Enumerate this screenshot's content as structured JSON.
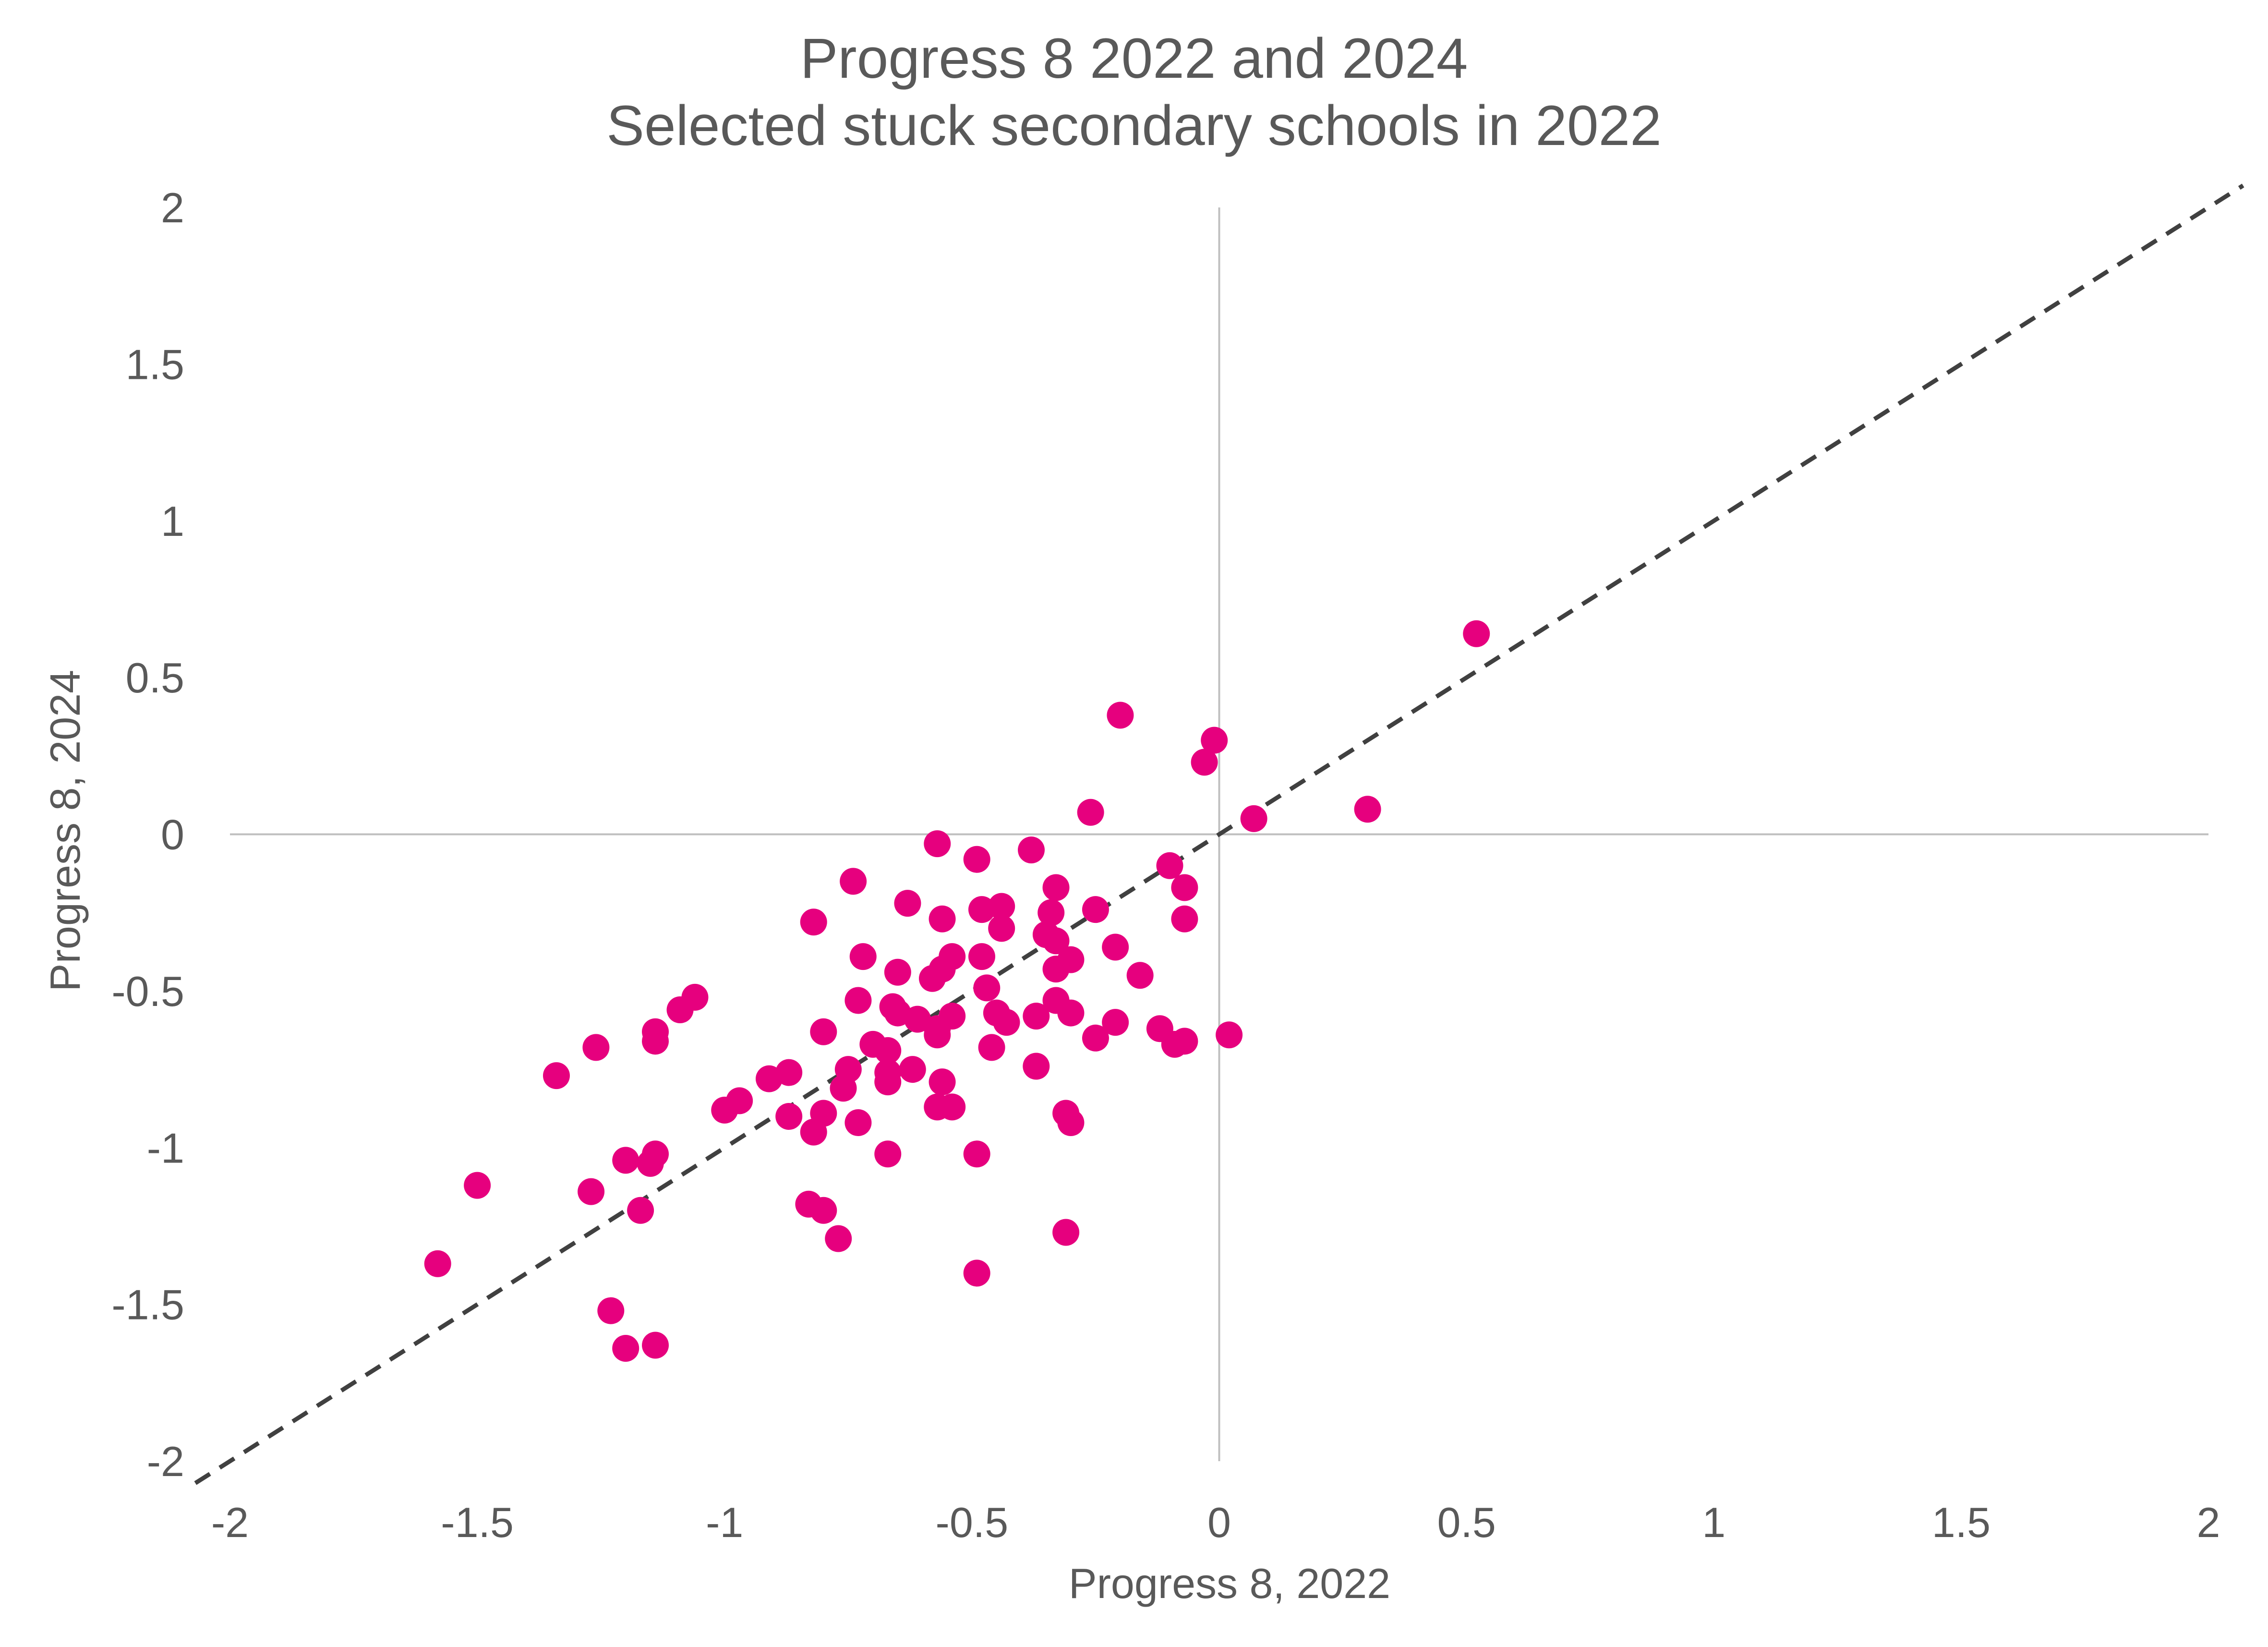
{
  "colors": {
    "point": "#e6007e",
    "reference_line": "#404040",
    "axis_line": "#bfbfbf",
    "text": "#595959",
    "background": "#ffffff"
  },
  "chart_data": {
    "type": "scatter",
    "title": "Progress 8 2022 and 2024",
    "subtitle": "Selected stuck secondary schools in 2022",
    "xlabel": "Progress 8, 2022",
    "ylabel": "Progress 8, 2024",
    "xlim": [
      -2,
      2
    ],
    "ylim": [
      -2,
      2
    ],
    "x_ticks": [
      "-2",
      "-1.5",
      "-1",
      "-0.5",
      "0",
      "0.5",
      "1",
      "1.5",
      "2"
    ],
    "y_ticks": [
      "2",
      "1.5",
      "1",
      "0.5",
      "0",
      "-0.5",
      "-1",
      "-1.5",
      "-2"
    ],
    "grid": false,
    "legend": "none",
    "reference_line": {
      "style": "dashed",
      "slope": 1,
      "intercept": 0
    },
    "points": [
      [
        0.52,
        0.64
      ],
      [
        0.3,
        0.08
      ],
      [
        0.07,
        0.05
      ],
      [
        -0.01,
        0.3
      ],
      [
        -0.03,
        0.23
      ],
      [
        -0.2,
        0.38
      ],
      [
        -0.26,
        0.07
      ],
      [
        -0.57,
        -0.03
      ],
      [
        -0.49,
        -0.08
      ],
      [
        -0.38,
        -0.05
      ],
      [
        -0.74,
        -0.15
      ],
      [
        -0.33,
        -0.17
      ],
      [
        -0.1,
        -0.1
      ],
      [
        -0.07,
        -0.17
      ],
      [
        -0.63,
        -0.22
      ],
      [
        -0.56,
        -0.27
      ],
      [
        -0.48,
        -0.24
      ],
      [
        -0.44,
        -0.23
      ],
      [
        -0.34,
        -0.25
      ],
      [
        -0.25,
        -0.24
      ],
      [
        -0.07,
        -0.27
      ],
      [
        -0.82,
        -0.28
      ],
      [
        -0.44,
        -0.3
      ],
      [
        -0.35,
        -0.32
      ],
      [
        -0.33,
        -0.34
      ],
      [
        -0.21,
        -0.36
      ],
      [
        -0.72,
        -0.39
      ],
      [
        -0.54,
        -0.39
      ],
      [
        -0.48,
        -0.39
      ],
      [
        -0.3,
        -0.4
      ],
      [
        -0.65,
        -0.44
      ],
      [
        -0.56,
        -0.43
      ],
      [
        -0.58,
        -0.46
      ],
      [
        -0.33,
        -0.43
      ],
      [
        -0.16,
        -0.45
      ],
      [
        -0.47,
        -0.49
      ],
      [
        -1.06,
        -0.52
      ],
      [
        -1.09,
        -0.56
      ],
      [
        -0.73,
        -0.53
      ],
      [
        -0.66,
        -0.55
      ],
      [
        -0.65,
        -0.57
      ],
      [
        -0.54,
        -0.58
      ],
      [
        -0.45,
        -0.57
      ],
      [
        -0.43,
        -0.6
      ],
      [
        -0.37,
        -0.58
      ],
      [
        -0.33,
        -0.53
      ],
      [
        -0.3,
        -0.57
      ],
      [
        -0.61,
        -0.59
      ],
      [
        -0.57,
        -0.62
      ],
      [
        -0.57,
        -0.64
      ],
      [
        -0.8,
        -0.63
      ],
      [
        -1.14,
        -0.63
      ],
      [
        -1.14,
        -0.66
      ],
      [
        -0.21,
        -0.6
      ],
      [
        -0.25,
        -0.65
      ],
      [
        -0.12,
        -0.62
      ],
      [
        -0.09,
        -0.67
      ],
      [
        -0.07,
        -0.66
      ],
      [
        0.02,
        -0.64
      ],
      [
        -1.26,
        -0.68
      ],
      [
        -0.7,
        -0.67
      ],
      [
        -0.67,
        -0.69
      ],
      [
        -0.46,
        -0.68
      ],
      [
        -0.37,
        -0.74
      ],
      [
        -0.62,
        -0.75
      ],
      [
        -0.67,
        -0.76
      ],
      [
        -0.75,
        -0.75
      ],
      [
        -0.87,
        -0.76
      ],
      [
        -0.91,
        -0.78
      ],
      [
        -1.34,
        -0.77
      ],
      [
        -0.76,
        -0.81
      ],
      [
        -0.67,
        -0.79
      ],
      [
        -0.56,
        -0.79
      ],
      [
        -0.97,
        -0.85
      ],
      [
        -1.0,
        -0.88
      ],
      [
        -0.57,
        -0.87
      ],
      [
        -0.54,
        -0.87
      ],
      [
        -0.8,
        -0.89
      ],
      [
        -0.87,
        -0.9
      ],
      [
        -0.73,
        -0.92
      ],
      [
        -0.82,
        -0.95
      ],
      [
        -0.31,
        -0.89
      ],
      [
        -0.3,
        -0.92
      ],
      [
        -1.14,
        -1.02
      ],
      [
        -1.15,
        -1.05
      ],
      [
        -1.2,
        -1.04
      ],
      [
        -0.67,
        -1.02
      ],
      [
        -0.49,
        -1.02
      ],
      [
        -1.5,
        -1.12
      ],
      [
        -1.27,
        -1.14
      ],
      [
        -1.17,
        -1.2
      ],
      [
        -0.83,
        -1.18
      ],
      [
        -0.8,
        -1.2
      ],
      [
        -0.77,
        -1.29
      ],
      [
        -0.31,
        -1.27
      ],
      [
        -1.58,
        -1.37
      ],
      [
        -0.49,
        -1.4
      ],
      [
        -1.23,
        -1.52
      ],
      [
        -1.2,
        -1.64
      ],
      [
        -1.14,
        -1.63
      ]
    ]
  }
}
